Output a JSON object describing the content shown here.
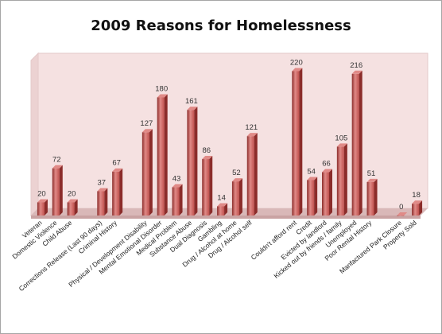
{
  "chart_data": {
    "type": "bar",
    "title": "2009 Reasons for Homelessness",
    "xlabel": "",
    "ylabel": "",
    "ylim": [
      0,
      240
    ],
    "grid": false,
    "legend": "none",
    "colors": {
      "bar": "#c0504d",
      "bar_dark": "#8b2c2a",
      "bar_light": "#e08a87",
      "plot_back": "#f5e1e1",
      "floor": "#d9b8b8"
    },
    "categories": [
      "Veteran",
      "Domestic Violence",
      "Child Abuse",
      "",
      "Corrections Release (Last 90 days)",
      "Criminal History",
      "",
      "Physical / Development Disability",
      "Mental Emotional Disorder",
      "Medical Problem",
      "Substance Abuse",
      "Dual Diagnosis",
      "Gambling",
      "Drug / Alcohol at home",
      "Drug / Alcohol self",
      "",
      "",
      "Couldn't afford  rent",
      "Credit",
      "Evicted by landlord",
      "Kicked out by friends / family",
      "Unemployed",
      "Poor Rental History",
      "",
      "Manfactured Park Closure",
      "Property Sold"
    ],
    "values": [
      20,
      72,
      20,
      null,
      37,
      67,
      null,
      127,
      180,
      43,
      161,
      86,
      14,
      52,
      121,
      null,
      null,
      220,
      54,
      66,
      105,
      216,
      51,
      null,
      0,
      18
    ]
  }
}
